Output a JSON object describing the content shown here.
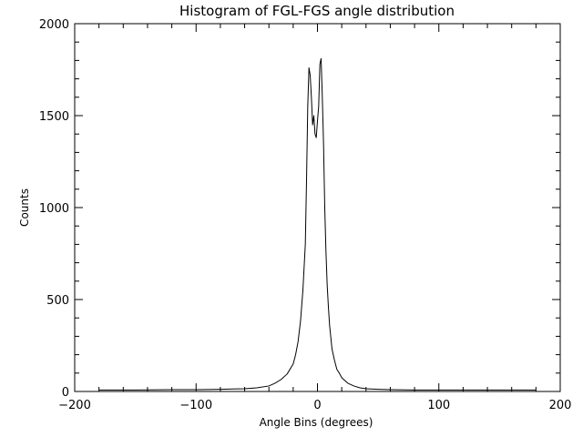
{
  "chart_data": {
    "type": "line",
    "title": "Histogram of FGL-FGS angle distribution",
    "xlabel": "Angle Bins (degrees)",
    "ylabel": "Counts",
    "xlim": [
      -200,
      200
    ],
    "ylim": [
      0,
      2000
    ],
    "grid": false,
    "x_ticks": [
      -200,
      -100,
      0,
      100,
      200
    ],
    "x_tick_labels": [
      "−200",
      "−100",
      "0",
      "100",
      "200"
    ],
    "y_ticks": [
      0,
      500,
      1000,
      1500,
      2000
    ],
    "y_tick_labels": [
      "0",
      "500",
      "1000",
      "1500",
      "2000"
    ],
    "series": [
      {
        "x": [
          -180,
          -150,
          -120,
          -100,
          -80,
          -60,
          -50,
          -40,
          -35,
          -30,
          -25,
          -20,
          -18,
          -16,
          -14,
          -12,
          -10,
          -9,
          -8,
          -7,
          -6,
          -5,
          -4,
          -3,
          -2,
          -1,
          0,
          1,
          2,
          3,
          4,
          5,
          6,
          7,
          8,
          9,
          10,
          12,
          14,
          16,
          18,
          20,
          25,
          30,
          35,
          40,
          50,
          60,
          80,
          100,
          120,
          150,
          180
        ],
        "y": [
          8,
          8,
          10,
          10,
          12,
          15,
          20,
          30,
          45,
          65,
          95,
          150,
          200,
          270,
          380,
          550,
          800,
          1150,
          1550,
          1760,
          1720,
          1600,
          1450,
          1500,
          1400,
          1380,
          1470,
          1550,
          1780,
          1810,
          1600,
          1350,
          1000,
          760,
          580,
          460,
          360,
          230,
          170,
          120,
          100,
          75,
          45,
          30,
          20,
          15,
          12,
          10,
          8,
          8,
          8,
          8,
          8
        ]
      }
    ]
  }
}
